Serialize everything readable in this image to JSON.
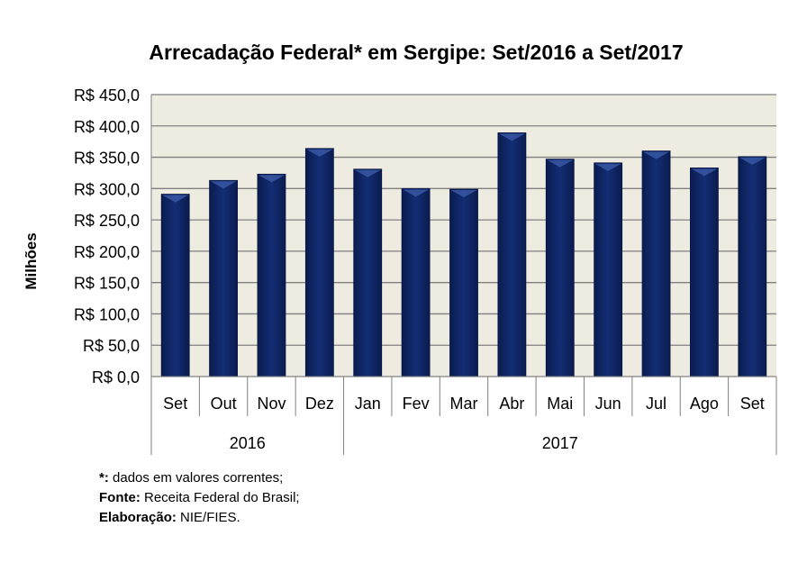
{
  "chart_data": {
    "type": "bar",
    "title": "Arrecadação Federal* em Sergipe: Set/2016 a Set/2017",
    "ylabel": "Milhões",
    "xlabel": "",
    "ylim": [
      0,
      450
    ],
    "yticks": [
      "R$ 0,0",
      "R$ 50,0",
      "R$ 100,0",
      "R$ 150,0",
      "R$ 200,0",
      "R$ 250,0",
      "R$ 300,0",
      "R$ 350,0",
      "R$ 400,0",
      "R$ 450,0"
    ],
    "categories": [
      "Set",
      "Out",
      "Nov",
      "Dez",
      "Jan",
      "Fev",
      "Mar",
      "Abr",
      "Mai",
      "Jun",
      "Jul",
      "Ago",
      "Set"
    ],
    "groups": [
      {
        "label": "2016",
        "count": 4
      },
      {
        "label": "2017",
        "count": 9
      }
    ],
    "values": [
      291,
      313,
      323,
      364,
      331,
      300,
      299,
      389,
      347,
      341,
      360,
      333,
      351
    ],
    "grid": true,
    "legend": "none",
    "colors": {
      "bar": "#0f2563",
      "plot_bg": "#eeebe0",
      "grid": "#808080"
    }
  },
  "notes": [
    {
      "bold": "*:",
      "text": " dados em valores correntes;"
    },
    {
      "bold": "Fonte:",
      "text": " Receita Federal do Brasil;"
    },
    {
      "bold": "Elaboração:",
      "text": " NIE/FIES."
    }
  ]
}
